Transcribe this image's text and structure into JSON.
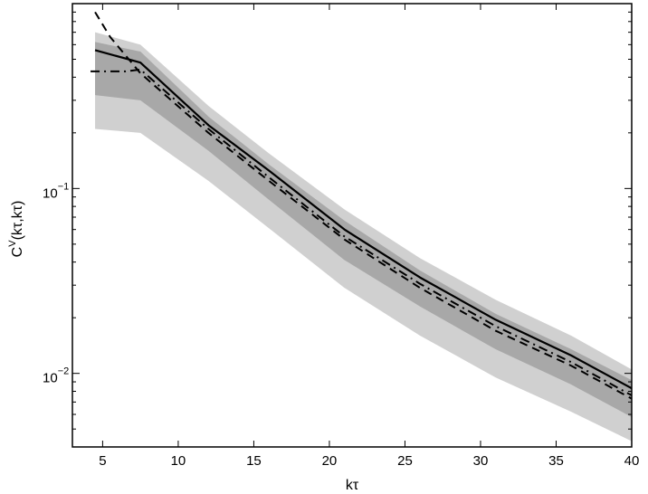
{
  "chart_data": {
    "type": "line",
    "title": "",
    "xlabel": "kτ",
    "ylabel_main": "C",
    "ylabel_sup": "V",
    "ylabel_rest": "(kτ,kτ)",
    "xlim": [
      3,
      40
    ],
    "ylim": [
      0.004,
      1.0
    ],
    "yscale": "log",
    "grid": false,
    "legend": "none",
    "x_ticks": [
      5,
      10,
      15,
      20,
      25,
      30,
      35,
      40
    ],
    "x_tick_labels": [
      "5",
      "10",
      "15",
      "20",
      "25",
      "30",
      "35",
      "40"
    ],
    "y_ticks": [
      0.01,
      0.1
    ],
    "y_tick_labels": [
      {
        "base": "10",
        "exp": "−2"
      },
      {
        "base": "10",
        "exp": "−1"
      }
    ],
    "bands": [
      {
        "color": "#d0d0d0",
        "x": [
          4.5,
          7.5,
          12,
          16,
          21,
          26,
          31,
          36,
          40
        ],
        "low": [
          0.21,
          0.2,
          0.11,
          0.061,
          0.029,
          0.016,
          0.0095,
          0.0062,
          0.0043
        ],
        "high": [
          0.7,
          0.6,
          0.28,
          0.155,
          0.077,
          0.042,
          0.025,
          0.016,
          0.0105
        ]
      },
      {
        "color": "#a8a8a8",
        "x": [
          4.5,
          7.5,
          12,
          16,
          21,
          26,
          31,
          36,
          40
        ],
        "low": [
          0.32,
          0.3,
          0.16,
          0.087,
          0.041,
          0.023,
          0.0135,
          0.0087,
          0.0058
        ],
        "high": [
          0.62,
          0.55,
          0.245,
          0.135,
          0.067,
          0.036,
          0.021,
          0.0135,
          0.0092
        ]
      }
    ],
    "series": [
      {
        "style": "solid",
        "x": [
          4.5,
          7.5,
          12,
          16,
          21,
          26,
          31,
          36,
          40
        ],
        "y": [
          0.56,
          0.48,
          0.22,
          0.125,
          0.06,
          0.033,
          0.0195,
          0.0125,
          0.0083
        ]
      },
      {
        "style": "dashed",
        "x": [
          4.5,
          5.5,
          7.5,
          12,
          16,
          21,
          26,
          31,
          36,
          40
        ],
        "y": [
          0.9,
          0.66,
          0.42,
          0.2,
          0.11,
          0.053,
          0.029,
          0.017,
          0.011,
          0.0073
        ]
      },
      {
        "style": "dashdot",
        "x": [
          4.2,
          5.5,
          6.5,
          7.5,
          12,
          16,
          21,
          26,
          31,
          36,
          40
        ],
        "y": [
          0.43,
          0.43,
          0.43,
          0.44,
          0.21,
          0.115,
          0.055,
          0.0305,
          0.018,
          0.0115,
          0.0076
        ]
      }
    ]
  }
}
